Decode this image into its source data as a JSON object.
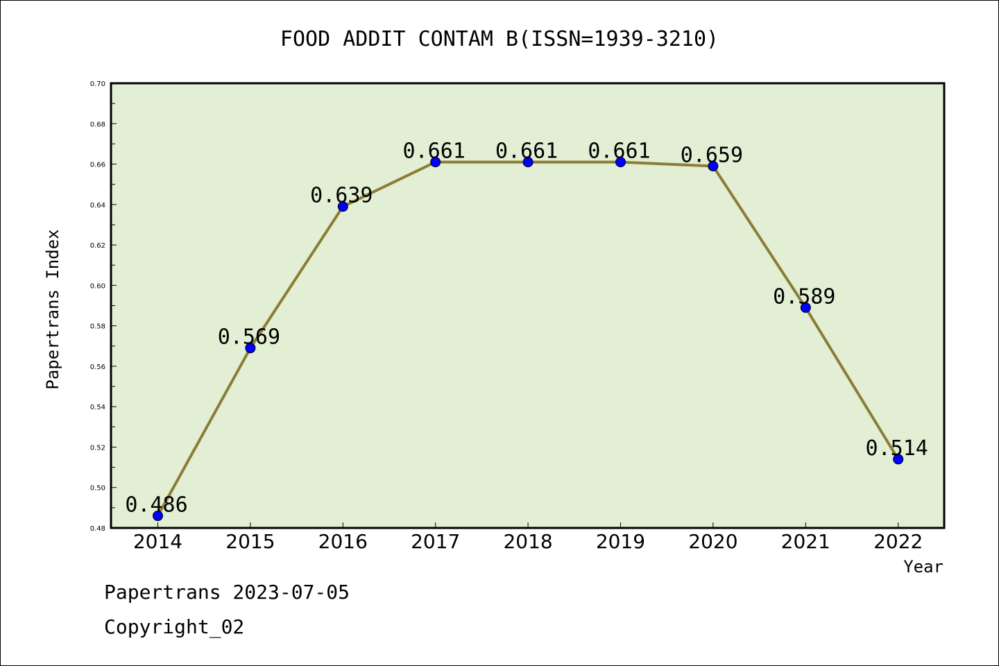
{
  "chart_data": {
    "type": "line",
    "title": "FOOD ADDIT CONTAM B(ISSN=1939-3210)",
    "xlabel": "Year",
    "ylabel": "Papertrans Index",
    "categories": [
      "2014",
      "2015",
      "2016",
      "2017",
      "2018",
      "2019",
      "2020",
      "2021",
      "2022"
    ],
    "values": [
      0.486,
      0.569,
      0.639,
      0.661,
      0.661,
      0.661,
      0.659,
      0.589,
      0.514
    ],
    "data_labels": [
      "0.486",
      "0.569",
      "0.639",
      "0.661",
      "0.661",
      "0.661",
      "0.659",
      "0.589",
      "0.514"
    ],
    "ylim": [
      0.48,
      0.7
    ],
    "yticks": [
      "0.48",
      "0.50",
      "0.52",
      "0.54",
      "0.56",
      "0.58",
      "0.60",
      "0.62",
      "0.64",
      "0.66",
      "0.68",
      "0.70"
    ],
    "grid": false,
    "colors": {
      "plot_background": "#e2efd4",
      "line": "#8b7d36",
      "marker": "#0000ff"
    }
  },
  "footer": {
    "line1": "Papertrans 2023-07-05",
    "line2": "Copyright_02"
  }
}
